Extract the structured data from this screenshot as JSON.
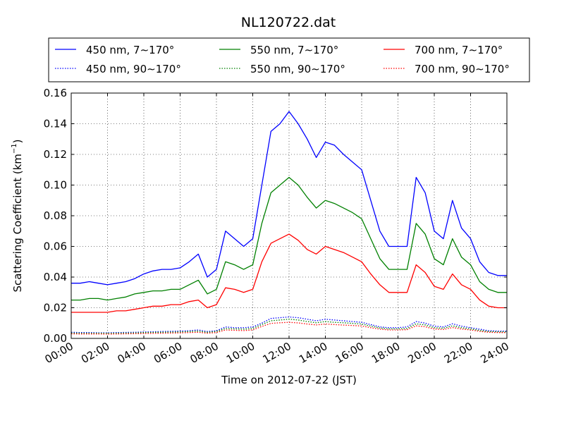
{
  "chart_data": {
    "type": "line",
    "title": "NL120722.dat",
    "xlabel": "Time on 2012-07-22 (JST)",
    "ylabel": "Scattering Coefficient (km",
    "ylabel_sup": "−1",
    "ylabel_tail": ")",
    "xlim": [
      0,
      24
    ],
    "ylim": [
      0,
      0.16
    ],
    "x_ticks": [
      {
        "value": 0,
        "label": "00:00"
      },
      {
        "value": 2,
        "label": "02:00"
      },
      {
        "value": 4,
        "label": "04:00"
      },
      {
        "value": 6,
        "label": "06:00"
      },
      {
        "value": 8,
        "label": "08:00"
      },
      {
        "value": 10,
        "label": "10:00"
      },
      {
        "value": 12,
        "label": "12:00"
      },
      {
        "value": 14,
        "label": "14:00"
      },
      {
        "value": 16,
        "label": "16:00"
      },
      {
        "value": 18,
        "label": "18:00"
      },
      {
        "value": 20,
        "label": "20:00"
      },
      {
        "value": 22,
        "label": "22:00"
      },
      {
        "value": 24,
        "label": "24:00"
      }
    ],
    "y_ticks": [
      {
        "value": 0,
        "label": "0.00"
      },
      {
        "value": 0.02,
        "label": "0.02"
      },
      {
        "value": 0.04,
        "label": "0.04"
      },
      {
        "value": 0.06,
        "label": "0.06"
      },
      {
        "value": 0.08,
        "label": "0.08"
      },
      {
        "value": 0.1,
        "label": "0.10"
      },
      {
        "value": 0.12,
        "label": "0.12"
      },
      {
        "value": 0.14,
        "label": "0.14"
      },
      {
        "value": 0.16,
        "label": "0.16"
      }
    ],
    "grid": true,
    "legend_position": "top",
    "x": [
      0,
      0.5,
      1,
      1.5,
      2,
      2.5,
      3,
      3.5,
      4,
      4.5,
      5,
      5.5,
      6,
      6.5,
      7,
      7.5,
      8,
      8.5,
      9,
      9.5,
      10,
      10.5,
      11,
      11.5,
      12,
      12.5,
      13,
      13.5,
      14,
      14.5,
      15,
      15.5,
      16,
      16.5,
      17,
      17.5,
      18,
      18.5,
      19,
      19.5,
      20,
      20.5,
      21,
      21.5,
      22,
      22.5,
      23,
      23.5,
      24
    ],
    "series": [
      {
        "name": "450 nm, 7∼170°",
        "color": "#0000ff",
        "dash": "solid",
        "values": [
          0.036,
          0.036,
          0.037,
          0.036,
          0.035,
          0.036,
          0.037,
          0.039,
          0.042,
          0.044,
          0.045,
          0.045,
          0.046,
          0.05,
          0.055,
          0.04,
          0.045,
          0.07,
          0.065,
          0.06,
          0.065,
          0.1,
          0.135,
          0.14,
          0.148,
          0.14,
          0.13,
          0.118,
          0.128,
          0.126,
          0.12,
          0.115,
          0.11,
          0.09,
          0.07,
          0.06,
          0.06,
          0.06,
          0.105,
          0.095,
          0.07,
          0.065,
          0.09,
          0.072,
          0.065,
          0.05,
          0.043,
          0.041,
          0.041
        ]
      },
      {
        "name": "450 nm, 90∼170°",
        "color": "#0000ff",
        "dash": "dotted",
        "values": [
          0.004,
          0.0038,
          0.0038,
          0.0037,
          0.0037,
          0.0038,
          0.0039,
          0.004,
          0.0042,
          0.0043,
          0.0045,
          0.0046,
          0.0048,
          0.005,
          0.0055,
          0.0045,
          0.005,
          0.0075,
          0.007,
          0.007,
          0.0075,
          0.01,
          0.013,
          0.0135,
          0.014,
          0.0135,
          0.0125,
          0.0115,
          0.0125,
          0.012,
          0.0115,
          0.011,
          0.0105,
          0.009,
          0.0075,
          0.007,
          0.007,
          0.0075,
          0.011,
          0.01,
          0.008,
          0.0075,
          0.0095,
          0.008,
          0.007,
          0.006,
          0.005,
          0.0048,
          0.0048
        ]
      },
      {
        "name": "550 nm, 7∼170°",
        "color": "#008000",
        "dash": "solid",
        "values": [
          0.025,
          0.025,
          0.026,
          0.026,
          0.025,
          0.026,
          0.027,
          0.029,
          0.03,
          0.031,
          0.031,
          0.032,
          0.032,
          0.035,
          0.038,
          0.029,
          0.032,
          0.05,
          0.048,
          0.045,
          0.048,
          0.075,
          0.095,
          0.1,
          0.105,
          0.1,
          0.092,
          0.085,
          0.09,
          0.088,
          0.085,
          0.082,
          0.078,
          0.065,
          0.052,
          0.045,
          0.045,
          0.045,
          0.075,
          0.068,
          0.052,
          0.048,
          0.065,
          0.053,
          0.048,
          0.037,
          0.032,
          0.03,
          0.03
        ]
      },
      {
        "name": "550 nm, 90∼170°",
        "color": "#008000",
        "dash": "dotted",
        "values": [
          0.0035,
          0.0034,
          0.0034,
          0.0034,
          0.0033,
          0.0034,
          0.0035,
          0.0036,
          0.0038,
          0.0039,
          0.004,
          0.0041,
          0.0042,
          0.0045,
          0.0048,
          0.004,
          0.0045,
          0.0065,
          0.0062,
          0.006,
          0.0065,
          0.009,
          0.0115,
          0.012,
          0.0125,
          0.012,
          0.011,
          0.0102,
          0.011,
          0.0105,
          0.0102,
          0.0098,
          0.0094,
          0.008,
          0.0068,
          0.0062,
          0.0062,
          0.0065,
          0.0095,
          0.0088,
          0.007,
          0.0066,
          0.0082,
          0.007,
          0.0062,
          0.0052,
          0.0045,
          0.0043,
          0.0043
        ]
      },
      {
        "name": "700 nm, 7∼170°",
        "color": "#ff0000",
        "dash": "solid",
        "values": [
          0.017,
          0.017,
          0.017,
          0.017,
          0.017,
          0.018,
          0.018,
          0.019,
          0.02,
          0.021,
          0.021,
          0.022,
          0.022,
          0.024,
          0.025,
          0.02,
          0.022,
          0.033,
          0.032,
          0.03,
          0.032,
          0.05,
          0.062,
          0.065,
          0.068,
          0.064,
          0.058,
          0.055,
          0.06,
          0.058,
          0.056,
          0.053,
          0.05,
          0.042,
          0.035,
          0.03,
          0.03,
          0.03,
          0.048,
          0.043,
          0.034,
          0.032,
          0.042,
          0.035,
          0.032,
          0.025,
          0.021,
          0.02,
          0.02
        ]
      },
      {
        "name": "700 nm, 90∼170°",
        "color": "#ff0000",
        "dash": "dotted",
        "values": [
          0.003,
          0.0029,
          0.0029,
          0.0029,
          0.0028,
          0.0029,
          0.003,
          0.0031,
          0.0032,
          0.0033,
          0.0034,
          0.0035,
          0.0036,
          0.0038,
          0.004,
          0.0034,
          0.0038,
          0.0055,
          0.0053,
          0.0051,
          0.0055,
          0.0078,
          0.0098,
          0.0102,
          0.0105,
          0.0101,
          0.0094,
          0.0088,
          0.0094,
          0.009,
          0.0087,
          0.0084,
          0.0081,
          0.007,
          0.006,
          0.0055,
          0.0055,
          0.0057,
          0.0082,
          0.0076,
          0.0061,
          0.0058,
          0.0071,
          0.0061,
          0.0055,
          0.0046,
          0.004,
          0.0038,
          0.0038
        ]
      }
    ]
  }
}
